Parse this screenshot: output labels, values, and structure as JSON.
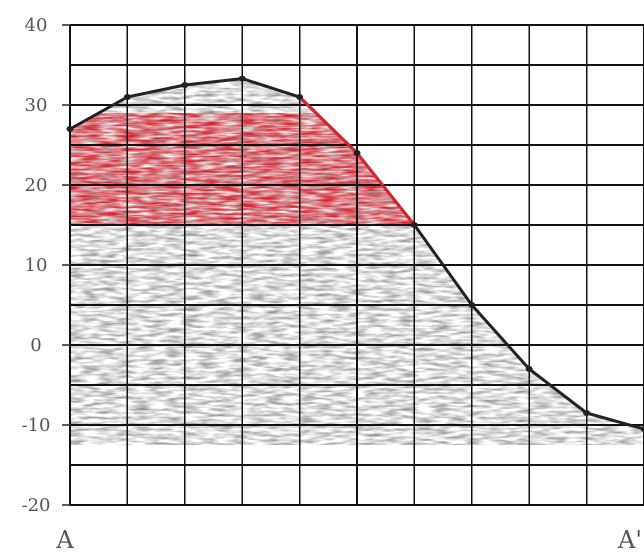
{
  "chart_data": {
    "type": "area",
    "title": "",
    "xlabel": "",
    "ylabel": "",
    "x_end_labels": [
      "A",
      "A'"
    ],
    "y_ticks": [
      40,
      30,
      20,
      10,
      0,
      -10,
      -20
    ],
    "y_tick_labels": [
      "40",
      "30",
      "20",
      "10",
      "0",
      "-10",
      "-20"
    ],
    "ylim": [
      -20,
      40
    ],
    "x_grid_columns": 10,
    "grid": true,
    "x": [
      0,
      1,
      2,
      3,
      4,
      5,
      6,
      7,
      8,
      9,
      10
    ],
    "series": [
      {
        "values": [
          27,
          31,
          32.5,
          33.3,
          31,
          24,
          15,
          5,
          -3,
          -8.5,
          -10.5
        ],
        "color": "#222222"
      }
    ],
    "highlight_band": {
      "color": "#d9232f",
      "y_range": [
        15,
        29
      ]
    },
    "fill_color": "#7a7a7a"
  }
}
